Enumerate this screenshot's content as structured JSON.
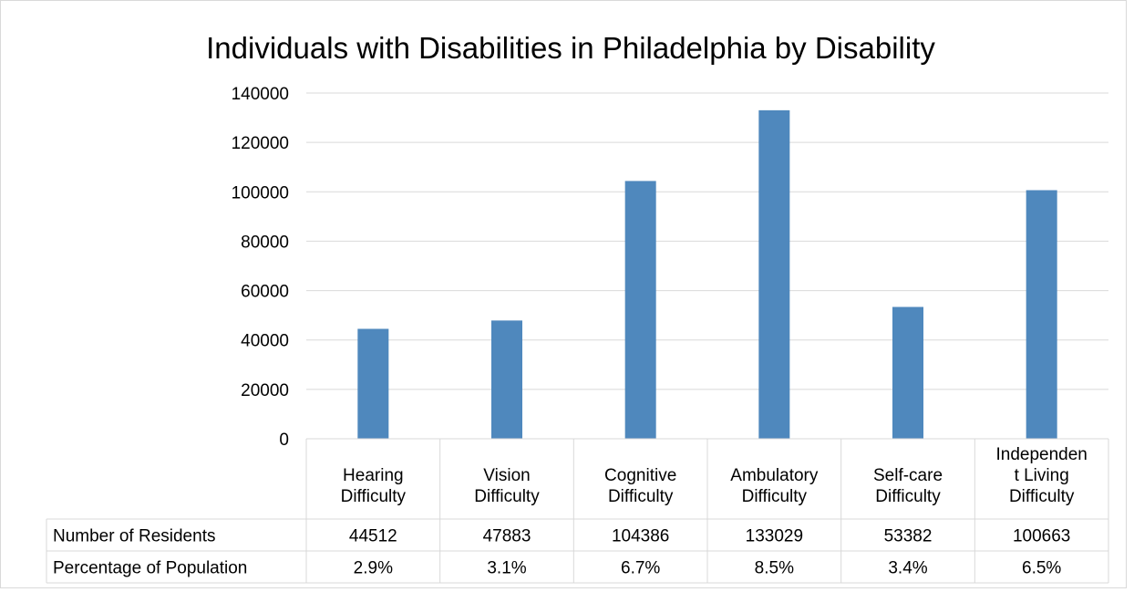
{
  "chart_data": {
    "type": "bar",
    "title": "Individuals with Disabilities in Philadelphia by Disability",
    "categories": [
      [
        "Hearing",
        "Difficulty"
      ],
      [
        "Vision",
        "Difficulty"
      ],
      [
        "Cognitive",
        "Difficulty"
      ],
      [
        "Ambulatory",
        "Difficulty"
      ],
      [
        "Self-care",
        "Difficulty"
      ],
      [
        "Independen",
        "t Living",
        "Difficulty"
      ]
    ],
    "series": [
      {
        "name": "Number of Residents",
        "values": [
          44512,
          47883,
          104386,
          133029,
          53382,
          100663
        ],
        "color": "#4f88bd"
      }
    ],
    "ylim": [
      0,
      140000
    ],
    "yticks": [
      0,
      20000,
      40000,
      60000,
      80000,
      100000,
      120000,
      140000
    ],
    "grid": true,
    "legend": "none",
    "data_table": {
      "rows": [
        {
          "label": "Number of Residents",
          "values": [
            "44512",
            "47883",
            "104386",
            "133029",
            "53382",
            "100663"
          ]
        },
        {
          "label": "Percentage of Population",
          "values": [
            "2.9%",
            "3.1%",
            "6.7%",
            "8.5%",
            "3.4%",
            "6.5%"
          ]
        }
      ]
    }
  }
}
